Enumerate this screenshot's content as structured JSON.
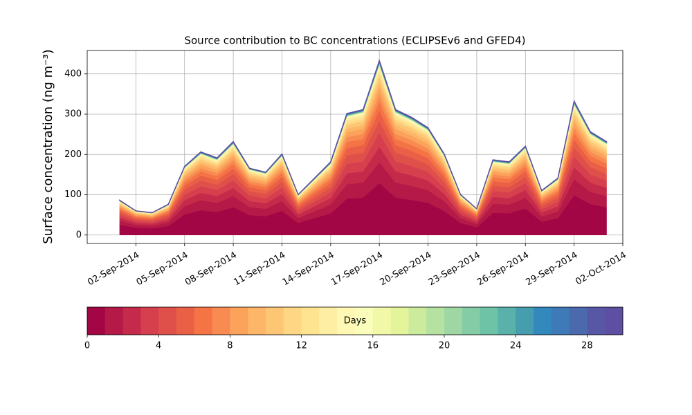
{
  "chart_data": {
    "type": "stacked_area",
    "title": "Source contribution to BC concentrations (ECLIPSEv6 and GFED4)",
    "y_label": "Surface concentration (ng m⁻³)",
    "x": [
      "2014-09-01",
      "2014-09-02",
      "2014-09-03",
      "2014-09-04",
      "2014-09-05",
      "2014-09-06",
      "2014-09-07",
      "2014-09-08",
      "2014-09-09",
      "2014-09-10",
      "2014-09-11",
      "2014-09-12",
      "2014-09-13",
      "2014-09-14",
      "2014-09-15",
      "2014-09-16",
      "2014-09-17",
      "2014-09-18",
      "2014-09-19",
      "2014-09-20",
      "2014-09-21",
      "2014-09-22",
      "2014-09-23",
      "2014-09-24",
      "2014-09-25",
      "2014-09-26",
      "2014-09-27",
      "2014-09-28",
      "2014-09-29",
      "2014-09-30",
      "2014-10-01"
    ],
    "xlim": [
      "2014-08-30",
      "2014-10-02"
    ],
    "xticks": [
      {
        "value": "2014-09-02",
        "label": "02-Sep-2014"
      },
      {
        "value": "2014-09-05",
        "label": "05-Sep-2014"
      },
      {
        "value": "2014-09-08",
        "label": "08-Sep-2014"
      },
      {
        "value": "2014-09-11",
        "label": "11-Sep-2014"
      },
      {
        "value": "2014-09-14",
        "label": "14-Sep-2014"
      },
      {
        "value": "2014-09-17",
        "label": "17-Sep-2014"
      },
      {
        "value": "2014-09-20",
        "label": "20-Sep-2014"
      },
      {
        "value": "2014-09-23",
        "label": "23-Sep-2014"
      },
      {
        "value": "2014-09-26",
        "label": "26-Sep-2014"
      },
      {
        "value": "2014-09-29",
        "label": "29-Sep-2014"
      },
      {
        "value": "2014-10-02",
        "label": "02-Oct-2014"
      }
    ],
    "ylim": [
      -21,
      458
    ],
    "yticks": [
      0,
      100,
      200,
      300,
      400
    ],
    "grid": true,
    "colorbar": {
      "label": "Days",
      "lim": [
        0,
        30
      ],
      "ticks": [
        0,
        4,
        8,
        12,
        16,
        20,
        24,
        28
      ]
    },
    "series": [
      {
        "color": "#a30644",
        "values": [
          25.5,
          18,
          16.5,
          22.5,
          51,
          61.5,
          57,
          69,
          49.5,
          46.5,
          60,
          30,
          42,
          54,
          90,
          93,
          129,
          93,
          87,
          79.5,
          60,
          30,
          19.5,
          55.5,
          54,
          66,
          33,
          42,
          99,
          76.5,
          69
        ]
      },
      {
        "color": "#b41947",
        "values": [
          10.2,
          7.2,
          6.6,
          9,
          20.4,
          24.6,
          22.8,
          27.6,
          19.8,
          18.6,
          24,
          12,
          16.8,
          21.6,
          36,
          37.2,
          51.6,
          37.2,
          34.8,
          31.8,
          24,
          12,
          7.8,
          22.2,
          21.6,
          26.4,
          13.2,
          16.8,
          39.6,
          30.6,
          27.6
        ]
      },
      {
        "color": "#c52a4a",
        "values": [
          7.7,
          5.4,
          5,
          6.8,
          15.3,
          18.5,
          17.1,
          20.7,
          14.9,
          14,
          18,
          9,
          12.6,
          16.2,
          27,
          27.9,
          38.7,
          27.9,
          26.1,
          23.9,
          18,
          9,
          5.9,
          16.7,
          16.2,
          19.8,
          9.9,
          12.6,
          29.7,
          23,
          20.7
        ]
      },
      {
        "color": "#d6404e",
        "values": [
          6.8,
          4.8,
          4.4,
          6,
          13.6,
          16.4,
          15.2,
          18.4,
          13.2,
          12.4,
          16,
          8,
          11.2,
          14.4,
          24,
          24.8,
          34.4,
          24.8,
          23.2,
          21.2,
          16,
          8,
          5.2,
          14.8,
          14.4,
          17.6,
          8.8,
          11.2,
          26.4,
          20.4,
          18.4
        ]
      },
      {
        "color": "#e0504b",
        "values": [
          6,
          4.2,
          3.9,
          5.3,
          11.9,
          14.4,
          13.3,
          16.1,
          11.6,
          10.9,
          14,
          7,
          9.8,
          12.6,
          21,
          21.7,
          30.1,
          21.7,
          20.3,
          18.6,
          14,
          7,
          4.6,
          13,
          12.6,
          15.4,
          7.7,
          9.8,
          23.1,
          17.9,
          16.1
        ]
      },
      {
        "color": "#ea6046",
        "values": [
          5.1,
          3.6,
          3.3,
          4.5,
          10.2,
          12.3,
          11.4,
          13.8,
          9.9,
          9.3,
          12,
          6,
          8.4,
          10.8,
          18,
          18.6,
          25.8,
          18.6,
          17.4,
          15.9,
          12,
          6,
          3.9,
          11.1,
          10.8,
          13.2,
          6.6,
          8.4,
          19.8,
          15.3,
          13.8
        ]
      },
      {
        "color": "#f57446",
        "values": [
          4.3,
          3,
          2.8,
          3.8,
          8.5,
          10.3,
          9.5,
          11.5,
          8.3,
          7.8,
          10,
          5,
          7,
          9,
          15,
          15.5,
          21.5,
          15.5,
          14.5,
          13.3,
          10,
          5,
          3.3,
          9.3,
          9,
          11,
          5.5,
          7,
          16.5,
          12.8,
          11.5
        ]
      },
      {
        "color": "#f88b51",
        "values": [
          3.4,
          2.4,
          2.2,
          3,
          6.8,
          8.2,
          7.6,
          9.2,
          6.6,
          6.2,
          8,
          4,
          5.6,
          7.2,
          12,
          12.4,
          17.2,
          12.4,
          11.6,
          10.6,
          8,
          4,
          2.6,
          7.4,
          7.2,
          8.8,
          4.4,
          5.6,
          13.2,
          10.2,
          9.2
        ]
      },
      {
        "color": "#fba25b",
        "values": [
          3.4,
          2.4,
          2.2,
          3,
          6.8,
          8.2,
          7.6,
          9.2,
          6.6,
          6.2,
          8,
          4,
          5.6,
          7.2,
          12,
          12.4,
          17.2,
          12.4,
          11.6,
          10.6,
          8,
          4,
          2.6,
          7.4,
          7.2,
          8.8,
          4.4,
          5.6,
          13.2,
          10.2,
          9.2
        ]
      },
      {
        "color": "#fdb567",
        "values": [
          2.6,
          1.8,
          1.7,
          2.3,
          5.1,
          6.2,
          5.7,
          6.9,
          5,
          4.7,
          6,
          3,
          4.2,
          5.4,
          9,
          9.3,
          12.9,
          9.3,
          8.7,
          8,
          6,
          3,
          2,
          5.6,
          5.4,
          6.6,
          3.3,
          4.2,
          9.9,
          7.7,
          6.9
        ]
      },
      {
        "color": "#fdc675",
        "values": [
          2.6,
          1.8,
          1.7,
          2.3,
          5.1,
          6.2,
          5.7,
          6.9,
          5,
          4.7,
          6,
          3,
          4.2,
          5.4,
          9,
          9.3,
          12.9,
          9.3,
          8.7,
          8,
          6,
          3,
          2,
          5.6,
          5.4,
          6.6,
          3.3,
          4.2,
          9.9,
          7.7,
          6.9
        ]
      },
      {
        "color": "#fed684",
        "values": [
          1.7,
          1.2,
          1.1,
          1.5,
          3.4,
          4.1,
          3.8,
          4.6,
          3.3,
          3.1,
          4,
          2,
          2.8,
          3.6,
          6,
          6.2,
          8.6,
          6.2,
          5.8,
          5.3,
          4,
          2,
          1.3,
          3.7,
          3.6,
          4.4,
          2.2,
          2.8,
          6.6,
          5.1,
          4.6
        ]
      },
      {
        "color": "#fee491",
        "values": [
          1.7,
          1.2,
          1.1,
          1.5,
          3.4,
          4.1,
          3.8,
          4.6,
          3.3,
          3.1,
          4,
          2,
          2.8,
          3.6,
          6,
          6.2,
          8.6,
          6.2,
          5.8,
          5.3,
          4,
          2,
          1.3,
          3.7,
          3.6,
          4.4,
          2.2,
          2.8,
          6.6,
          5.1,
          4.6
        ]
      },
      {
        "color": "#feeea3",
        "values": [
          1.3,
          0.9,
          0.8,
          1.1,
          2.6,
          3.1,
          2.9,
          3.5,
          2.5,
          2.3,
          3,
          1.5,
          2.1,
          2.7,
          4.5,
          4.7,
          6.5,
          4.7,
          4.4,
          4,
          3,
          1.5,
          1,
          2.8,
          2.7,
          3.3,
          1.7,
          2.1,
          5,
          3.8,
          3.5
        ]
      },
      {
        "color": "#fff8b4",
        "values": [
          0.9,
          0.6,
          0.6,
          0.8,
          1.7,
          2.1,
          1.9,
          2.3,
          1.7,
          1.6,
          2,
          1,
          1.4,
          1.8,
          3,
          3.1,
          4.3,
          3.1,
          2.9,
          2.7,
          2,
          1,
          0.7,
          1.9,
          1.8,
          2.2,
          1.1,
          1.4,
          3.3,
          2.6,
          2.3
        ]
      },
      {
        "color": "#fbfdba",
        "values": [
          0.2,
          0.1,
          0.1,
          0.2,
          0.3,
          0.4,
          0.4,
          0.5,
          0.3,
          0.3,
          0.4,
          0.2,
          0.3,
          0.4,
          0.6,
          0.6,
          0.9,
          0.6,
          0.6,
          0.5,
          0.4,
          0.2,
          0.1,
          0.4,
          0.4,
          0.4,
          0.2,
          0.3,
          0.7,
          0.5,
          0.5
        ]
      },
      {
        "color": "#f1f9a9",
        "values": [
          0.2,
          0.1,
          0.1,
          0.2,
          0.3,
          0.4,
          0.4,
          0.5,
          0.3,
          0.3,
          0.4,
          0.2,
          0.3,
          0.4,
          0.6,
          0.6,
          0.9,
          0.6,
          0.6,
          0.5,
          0.4,
          0.2,
          0.1,
          0.4,
          0.4,
          0.4,
          0.2,
          0.3,
          0.7,
          0.5,
          0.5
        ]
      },
      {
        "color": "#e4f49b",
        "values": [
          0.2,
          0.1,
          0.1,
          0.2,
          0.3,
          0.4,
          0.4,
          0.5,
          0.3,
          0.3,
          0.4,
          0.2,
          0.3,
          0.4,
          0.6,
          0.6,
          0.9,
          0.6,
          0.6,
          0.5,
          0.4,
          0.2,
          0.1,
          0.4,
          0.4,
          0.4,
          0.2,
          0.3,
          0.7,
          0.5,
          0.5
        ]
      },
      {
        "color": "#cdeb9d",
        "values": [
          0.2,
          0.1,
          0.1,
          0.2,
          0.3,
          0.4,
          0.4,
          0.5,
          0.3,
          0.3,
          0.4,
          0.2,
          0.3,
          0.4,
          0.6,
          0.6,
          0.9,
          0.6,
          0.6,
          0.5,
          0.4,
          0.2,
          0.1,
          0.4,
          0.4,
          0.4,
          0.2,
          0.3,
          0.7,
          0.5,
          0.5
        ]
      },
      {
        "color": "#b5e1a1",
        "values": [
          0.2,
          0.1,
          0.1,
          0.2,
          0.3,
          0.4,
          0.4,
          0.5,
          0.3,
          0.3,
          0.4,
          0.2,
          0.3,
          0.4,
          0.6,
          0.6,
          0.9,
          0.6,
          0.6,
          0.5,
          0.4,
          0.2,
          0.1,
          0.4,
          0.4,
          0.4,
          0.2,
          0.3,
          0.7,
          0.5,
          0.5
        ]
      },
      {
        "color": "#9ed7a4",
        "values": [
          0.2,
          0.1,
          0.1,
          0.2,
          0.3,
          0.4,
          0.4,
          0.5,
          0.3,
          0.3,
          0.4,
          0.2,
          0.3,
          0.4,
          0.6,
          0.6,
          0.9,
          0.6,
          0.6,
          0.5,
          0.4,
          0.2,
          0.1,
          0.4,
          0.4,
          0.4,
          0.2,
          0.3,
          0.7,
          0.5,
          0.5
        ]
      },
      {
        "color": "#84cca5",
        "values": [
          0.2,
          0.1,
          0.1,
          0.2,
          0.3,
          0.4,
          0.4,
          0.5,
          0.3,
          0.3,
          0.4,
          0.2,
          0.3,
          0.4,
          0.6,
          0.6,
          0.9,
          0.6,
          0.6,
          0.5,
          0.4,
          0.2,
          0.1,
          0.4,
          0.4,
          0.4,
          0.2,
          0.3,
          0.7,
          0.5,
          0.5
        ]
      },
      {
        "color": "#6ec3a6",
        "values": [
          0.2,
          0.1,
          0.1,
          0.2,
          0.3,
          0.4,
          0.4,
          0.5,
          0.3,
          0.3,
          0.4,
          0.2,
          0.3,
          0.4,
          0.6,
          0.6,
          0.9,
          0.6,
          0.6,
          0.5,
          0.4,
          0.2,
          0.1,
          0.4,
          0.4,
          0.4,
          0.2,
          0.3,
          0.7,
          0.5,
          0.5
        ]
      },
      {
        "color": "#5ab1aa",
        "values": [
          0.2,
          0.1,
          0.1,
          0.2,
          0.3,
          0.4,
          0.4,
          0.5,
          0.3,
          0.3,
          0.4,
          0.2,
          0.3,
          0.4,
          0.6,
          0.6,
          0.9,
          0.6,
          0.6,
          0.5,
          0.4,
          0.2,
          0.1,
          0.4,
          0.4,
          0.4,
          0.2,
          0.3,
          0.7,
          0.5,
          0.5
        ]
      },
      {
        "color": "#459dae",
        "values": [
          0.2,
          0.1,
          0.1,
          0.2,
          0.3,
          0.4,
          0.4,
          0.5,
          0.3,
          0.3,
          0.4,
          0.2,
          0.3,
          0.4,
          0.6,
          0.6,
          0.9,
          0.6,
          0.6,
          0.5,
          0.4,
          0.2,
          0.1,
          0.4,
          0.4,
          0.4,
          0.2,
          0.3,
          0.7,
          0.5,
          0.5
        ]
      },
      {
        "color": "#3389bc",
        "values": [
          0.2,
          0.1,
          0.1,
          0.2,
          0.3,
          0.4,
          0.4,
          0.5,
          0.3,
          0.3,
          0.4,
          0.2,
          0.3,
          0.4,
          0.6,
          0.6,
          0.9,
          0.6,
          0.6,
          0.5,
          0.4,
          0.2,
          0.1,
          0.4,
          0.4,
          0.4,
          0.2,
          0.3,
          0.7,
          0.5,
          0.5
        ]
      },
      {
        "color": "#3d7ab7",
        "values": [
          0.2,
          0.1,
          0.1,
          0.2,
          0.3,
          0.4,
          0.4,
          0.5,
          0.3,
          0.3,
          0.4,
          0.2,
          0.3,
          0.4,
          0.6,
          0.6,
          0.9,
          0.6,
          0.6,
          0.5,
          0.4,
          0.2,
          0.1,
          0.4,
          0.4,
          0.4,
          0.2,
          0.3,
          0.7,
          0.5,
          0.5
        ]
      },
      {
        "color": "#4b6aae",
        "values": [
          0.2,
          0.1,
          0.1,
          0.2,
          0.3,
          0.4,
          0.4,
          0.5,
          0.3,
          0.3,
          0.4,
          0.2,
          0.3,
          0.4,
          0.6,
          0.6,
          0.9,
          0.6,
          0.6,
          0.5,
          0.4,
          0.2,
          0.1,
          0.4,
          0.4,
          0.4,
          0.2,
          0.3,
          0.7,
          0.5,
          0.5
        ]
      },
      {
        "color": "#5757a6",
        "values": [
          0.2,
          0.1,
          0.1,
          0.2,
          0.3,
          0.4,
          0.4,
          0.5,
          0.3,
          0.3,
          0.4,
          0.2,
          0.3,
          0.4,
          0.6,
          0.6,
          0.9,
          0.6,
          0.6,
          0.5,
          0.4,
          0.2,
          0.1,
          0.4,
          0.4,
          0.4,
          0.2,
          0.3,
          0.7,
          0.5,
          0.5
        ]
      },
      {
        "color": "#5e4fa2",
        "values": [
          0.2,
          0.1,
          0.1,
          0.2,
          0.3,
          0.4,
          0.4,
          0.5,
          0.3,
          0.3,
          0.4,
          0.2,
          0.3,
          0.4,
          0.6,
          0.6,
          0.9,
          0.6,
          0.6,
          0.5,
          0.4,
          0.2,
          0.1,
          0.4,
          0.4,
          0.4,
          0.2,
          0.3,
          0.7,
          0.5,
          0.5
        ]
      }
    ]
  }
}
